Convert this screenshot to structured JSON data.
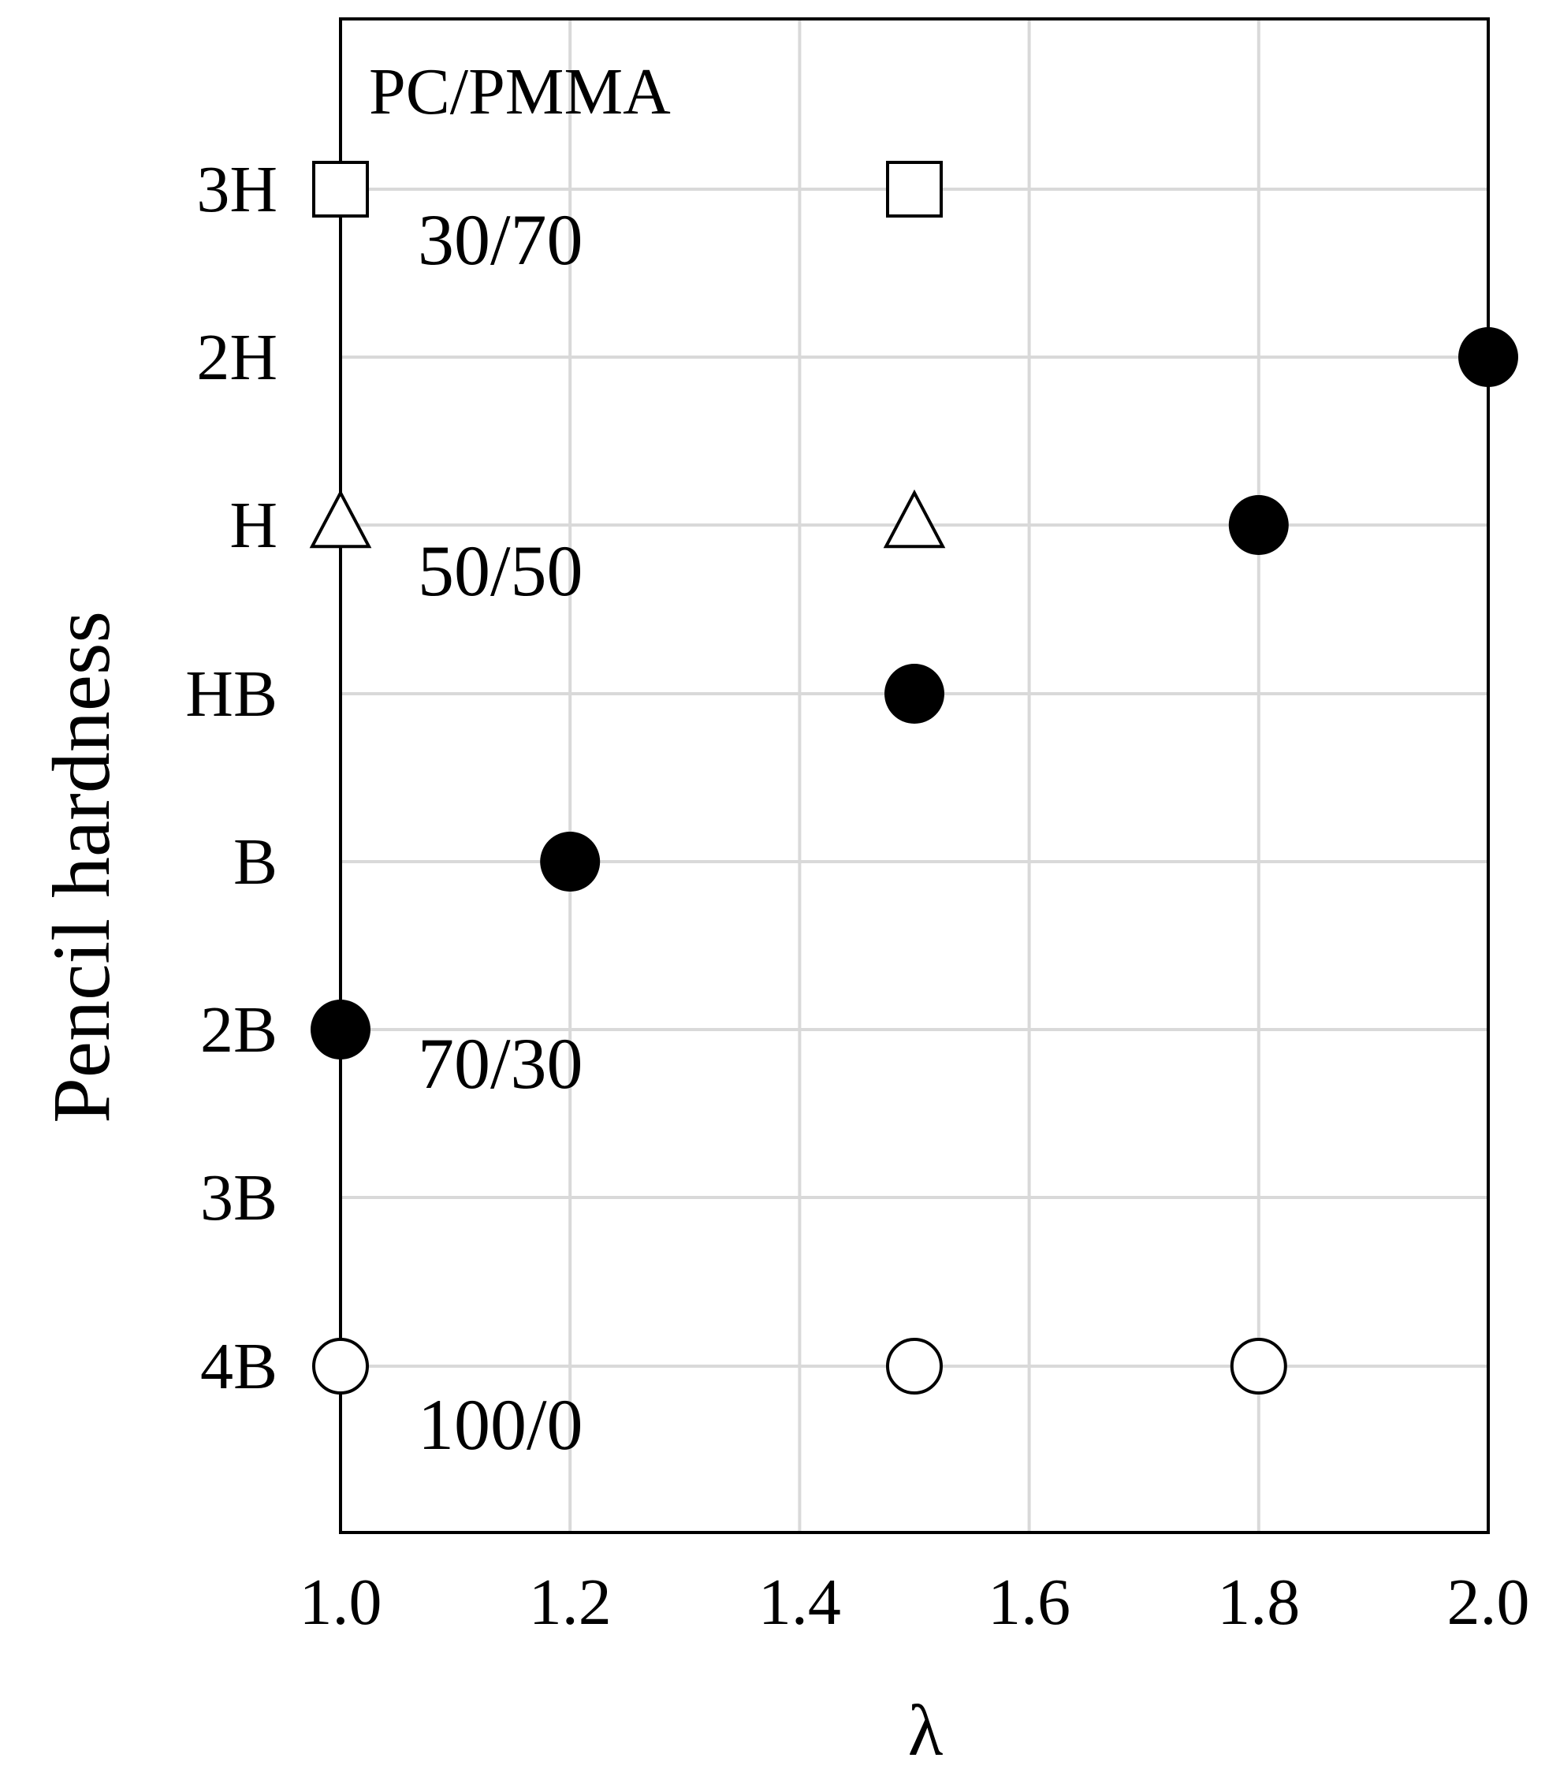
{
  "chart_data": {
    "type": "scatter",
    "title": "",
    "annotation_title": "PC/PMMA",
    "xlabel": "λ",
    "ylabel": "Pencil hardness",
    "xlim": [
      1.0,
      2.0
    ],
    "x_ticks": [
      "1.0",
      "1.2",
      "1.4",
      "1.6",
      "1.8",
      "2.0"
    ],
    "y_categories": [
      "4B",
      "3B",
      "2B",
      "B",
      "HB",
      "H",
      "2H",
      "3H"
    ],
    "grid": true,
    "series": [
      {
        "name": "100/0",
        "marker": "circle-open",
        "points": [
          {
            "x": 1.0,
            "y": "4B"
          },
          {
            "x": 1.5,
            "y": "4B"
          },
          {
            "x": 1.8,
            "y": "4B"
          }
        ]
      },
      {
        "name": "70/30",
        "marker": "circle-filled",
        "points": [
          {
            "x": 1.0,
            "y": "2B"
          },
          {
            "x": 1.2,
            "y": "B"
          },
          {
            "x": 1.5,
            "y": "HB"
          },
          {
            "x": 1.8,
            "y": "H"
          },
          {
            "x": 2.0,
            "y": "2H"
          }
        ]
      },
      {
        "name": "50/50",
        "marker": "triangle-open",
        "points": [
          {
            "x": 1.0,
            "y": "H"
          },
          {
            "x": 1.5,
            "y": "H"
          }
        ]
      },
      {
        "name": "30/70",
        "marker": "square-open",
        "points": [
          {
            "x": 1.0,
            "y": "3H"
          },
          {
            "x": 1.5,
            "y": "3H"
          }
        ]
      }
    ],
    "colors": {
      "marker": "#000000",
      "grid": "#d9d9d9",
      "frame": "#000000"
    }
  }
}
